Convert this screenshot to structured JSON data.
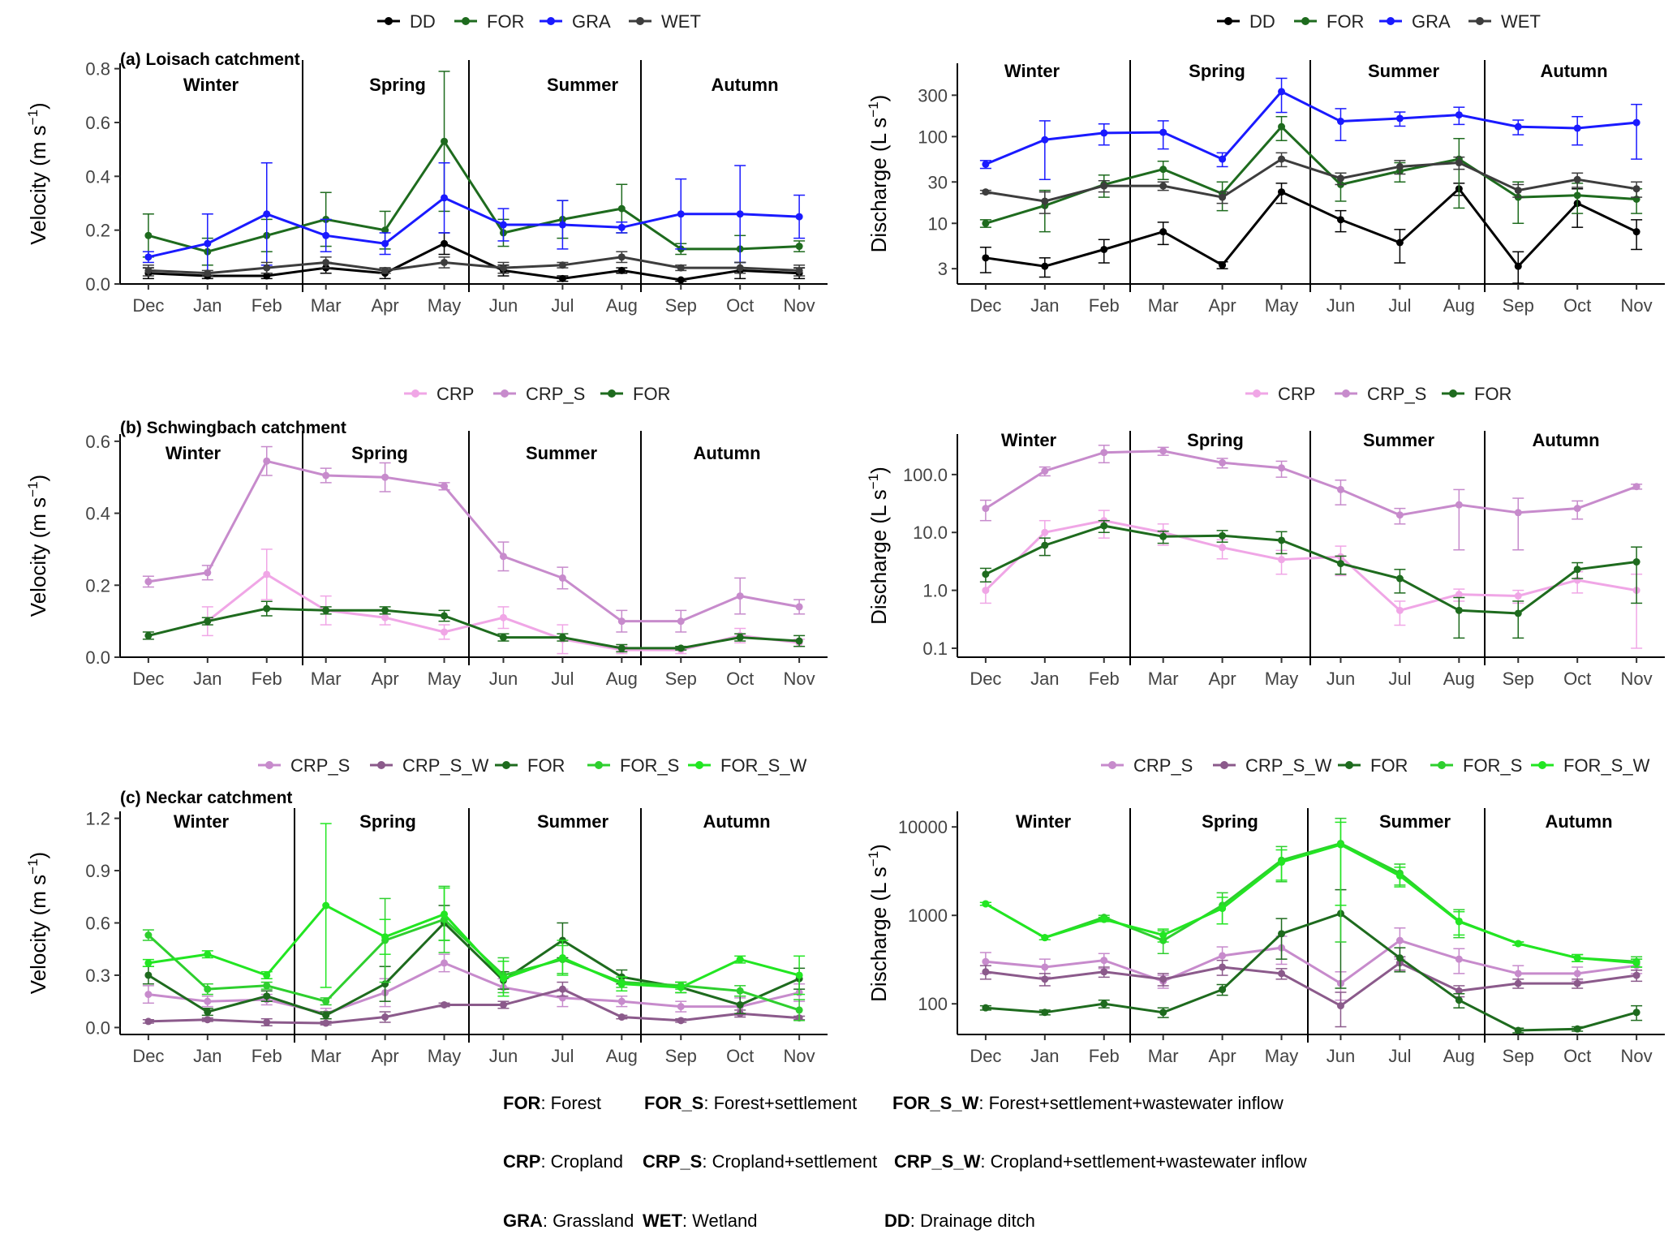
{
  "months": [
    "Dec",
    "Jan",
    "Feb",
    "Mar",
    "Apr",
    "May",
    "Jun",
    "Jul",
    "Aug",
    "Sep",
    "Oct",
    "Nov"
  ],
  "season_labels": [
    "Winter",
    "Spring",
    "Summer",
    "Autumn"
  ],
  "colors": {
    "DD": "#000000",
    "FOR": "#1e6b1e",
    "GRA": "#1a1aff",
    "WET": "#3d3d3d",
    "CRP": "#f0a6e6",
    "CRP_S": "#c78bcc",
    "CRP_S_W": "#8b5a8b",
    "FOR_S": "#2ecf2e",
    "FOR_S_W": "#22e622",
    "axis": "#000000"
  },
  "chart_data": [
    {
      "id": "loisach-velocity",
      "type": "line",
      "panel_label": "(a) Loisach catchment",
      "ylabel": "Velocity (m s-1)",
      "yscale": "linear",
      "ylim": [
        0,
        0.82
      ],
      "yticks": [
        0.0,
        0.2,
        0.4,
        0.6,
        0.8
      ],
      "ytick_labels": [
        "0.0",
        "0.2",
        "0.4",
        "0.6",
        "0.8"
      ],
      "legend": [
        "DD",
        "FOR",
        "GRA",
        "WET"
      ],
      "series": [
        {
          "name": "DD",
          "values": [
            0.04,
            0.03,
            0.03,
            0.06,
            0.04,
            0.15,
            0.05,
            0.02,
            0.05,
            0.015,
            0.05,
            0.04
          ],
          "errors": [
            0.02,
            0.01,
            0.01,
            0.02,
            0.02,
            0.04,
            0.02,
            0.01,
            0.01,
            0.005,
            0.03,
            0.02
          ]
        },
        {
          "name": "FOR",
          "values": [
            0.18,
            0.12,
            0.18,
            0.24,
            0.2,
            0.53,
            0.19,
            0.24,
            0.28,
            0.13,
            0.13,
            0.14
          ],
          "errors": [
            0.08,
            0.05,
            0.06,
            0.1,
            0.07,
            0.26,
            0.05,
            0.07,
            0.09,
            0.02,
            0.05,
            0.02
          ]
        },
        {
          "name": "GRA",
          "values": [
            0.1,
            0.15,
            0.26,
            0.18,
            0.15,
            0.32,
            0.22,
            0.22,
            0.21,
            0.26,
            0.26,
            0.25
          ],
          "errors": [
            0.02,
            0.11,
            0.19,
            0.06,
            0.04,
            0.13,
            0.06,
            0.09,
            0.02,
            0.13,
            0.18,
            0.08
          ]
        },
        {
          "name": "WET",
          "values": [
            0.05,
            0.04,
            0.06,
            0.08,
            0.05,
            0.08,
            0.06,
            0.07,
            0.1,
            0.06,
            0.06,
            0.05
          ],
          "errors": [
            0.02,
            0.01,
            0.02,
            0.02,
            0.01,
            0.02,
            0.02,
            0.01,
            0.02,
            0.01,
            0.02,
            0.02
          ]
        }
      ]
    },
    {
      "id": "loisach-discharge",
      "type": "line",
      "ylabel": "Discharge (L s-1)",
      "yscale": "log",
      "ylim": [
        2,
        700
      ],
      "yticks": [
        3,
        10,
        30,
        100,
        300
      ],
      "ytick_labels": [
        "3",
        "10",
        "30",
        "100",
        "300"
      ],
      "legend": [
        "DD",
        "FOR",
        "GRA",
        "WET"
      ],
      "series": [
        {
          "name": "DD",
          "values": [
            4,
            3.2,
            5,
            8,
            3.3,
            23,
            11,
            6,
            25,
            3.2,
            17,
            8
          ],
          "errors": [
            1.3,
            0.8,
            1.5,
            2.3,
            0.3,
            6,
            3,
            2.5,
            4,
            1.5,
            8,
            3
          ]
        },
        {
          "name": "FOR",
          "values": [
            10,
            16,
            28,
            42,
            22,
            130,
            28,
            40,
            55,
            20,
            21,
            19
          ],
          "errors": [
            1,
            8,
            8,
            10,
            8,
            40,
            10,
            10,
            40,
            10,
            8,
            6
          ]
        },
        {
          "name": "GRA",
          "values": [
            48,
            92,
            110,
            112,
            55,
            330,
            150,
            162,
            178,
            130,
            125,
            145
          ],
          "errors": [
            5,
            60,
            30,
            40,
            10,
            140,
            60,
            30,
            40,
            25,
            45,
            90
          ]
        },
        {
          "name": "WET",
          "values": [
            23,
            18,
            27,
            27,
            20,
            55,
            33,
            45,
            50,
            24,
            32,
            25
          ],
          "errors": [
            1,
            5,
            4,
            3,
            3,
            10,
            5,
            8,
            8,
            4,
            6,
            5
          ]
        }
      ]
    },
    {
      "id": "schwingbach-velocity",
      "type": "line",
      "panel_label": "(b) Schwingbach catchment",
      "ylabel": "Velocity (m s-1)",
      "yscale": "linear",
      "ylim": [
        0,
        0.62
      ],
      "yticks": [
        0.0,
        0.2,
        0.4,
        0.6
      ],
      "ytick_labels": [
        "0.0",
        "0.2",
        "0.4",
        "0.6"
      ],
      "legend": [
        "CRP",
        "CRP_S",
        "FOR"
      ],
      "series": [
        {
          "name": "CRP",
          "values": [
            null,
            0.1,
            0.23,
            0.13,
            0.11,
            0.07,
            0.11,
            0.05,
            0.02,
            0.02,
            0.06,
            0.04
          ],
          "errors": [
            0,
            0.04,
            0.07,
            0.04,
            0.02,
            0.02,
            0.03,
            0.04,
            0.01,
            0.01,
            0.02,
            0.01
          ]
        },
        {
          "name": "CRP_S",
          "values": [
            0.21,
            0.235,
            0.545,
            0.505,
            0.5,
            0.475,
            0.28,
            0.22,
            0.1,
            0.1,
            0.17,
            0.14
          ],
          "errors": [
            0.015,
            0.02,
            0.04,
            0.02,
            0.04,
            0.01,
            0.04,
            0.03,
            0.03,
            0.03,
            0.05,
            0.02
          ]
        },
        {
          "name": "FOR",
          "values": [
            0.06,
            0.1,
            0.135,
            0.13,
            0.13,
            0.115,
            0.055,
            0.055,
            0.025,
            0.025,
            0.055,
            0.045
          ],
          "errors": [
            0.01,
            0.01,
            0.02,
            0.01,
            0.01,
            0.015,
            0.01,
            0.01,
            0.01,
            0.005,
            0.01,
            0.015
          ]
        }
      ]
    },
    {
      "id": "schwingbach-discharge",
      "type": "line",
      "ylabel": "Discharge (L s-1)",
      "yscale": "log",
      "ylim": [
        0.07,
        500
      ],
      "yticks": [
        0.1,
        1,
        10,
        100
      ],
      "ytick_labels": [
        "0.1",
        "1.0",
        "10.0",
        "100.0"
      ],
      "legend": [
        "CRP",
        "CRP_S",
        "FOR"
      ],
      "series": [
        {
          "name": "CRP",
          "values": [
            1.0,
            10,
            16,
            10,
            5.5,
            3.4,
            3.8,
            0.45,
            0.85,
            0.8,
            1.5,
            1.0
          ],
          "errors": [
            0.4,
            6,
            8,
            4,
            2,
            1.5,
            2,
            0.2,
            0.2,
            0.2,
            0.6,
            0.9
          ]
        },
        {
          "name": "CRP_S",
          "values": [
            26,
            115,
            240,
            255,
            160,
            130,
            55,
            20,
            30,
            22,
            26,
            62
          ],
          "errors": [
            10,
            20,
            80,
            40,
            30,
            40,
            25,
            6,
            25,
            17,
            9,
            6
          ]
        },
        {
          "name": "FOR",
          "values": [
            1.9,
            6,
            13,
            8.5,
            8.8,
            7.3,
            2.9,
            1.6,
            0.45,
            0.4,
            2.3,
            3.1
          ],
          "errors": [
            0.5,
            2,
            3,
            2,
            2,
            3,
            1,
            0.7,
            0.3,
            0.25,
            0.7,
            2.5
          ]
        }
      ]
    },
    {
      "id": "neckar-velocity",
      "type": "line",
      "panel_label": "(c) Neckar catchment",
      "ylabel": "Velocity (m s-1)",
      "yscale": "linear",
      "ylim": [
        -0.04,
        1.24
      ],
      "yticks": [
        0.0,
        0.3,
        0.6,
        0.9,
        1.2
      ],
      "ytick_labels": [
        "0.0",
        "0.3",
        "0.6",
        "0.9",
        "1.2"
      ],
      "legend": [
        "CRP_S",
        "CRP_S_W",
        "FOR",
        "FOR_S",
        "FOR_S_W"
      ],
      "series": [
        {
          "name": "CRP_S",
          "values": [
            0.19,
            0.15,
            0.16,
            0.08,
            0.2,
            0.37,
            0.23,
            0.17,
            0.15,
            0.12,
            0.12,
            0.2
          ],
          "errors": [
            0.05,
            0.03,
            0.03,
            0.03,
            0.08,
            0.05,
            0.05,
            0.05,
            0.03,
            0.03,
            0.05,
            0.05
          ]
        },
        {
          "name": "CRP_S_W",
          "values": [
            0.035,
            0.045,
            0.03,
            0.025,
            0.06,
            0.13,
            0.13,
            0.22,
            0.06,
            0.04,
            0.08,
            0.055
          ],
          "errors": [
            0.01,
            0.01,
            0.02,
            0.01,
            0.03,
            0.01,
            0.02,
            0.04,
            0.01,
            0.01,
            0.02,
            0.01
          ]
        },
        {
          "name": "FOR",
          "values": [
            0.3,
            0.09,
            0.18,
            0.07,
            0.25,
            0.6,
            0.27,
            0.5,
            0.29,
            0.23,
            0.13,
            0.28
          ],
          "errors": [
            0.05,
            0.02,
            0.03,
            0.02,
            0.1,
            0.1,
            0.05,
            0.1,
            0.04,
            0.03,
            0.05,
            0.06
          ]
        },
        {
          "name": "FOR_S",
          "values": [
            0.53,
            0.22,
            0.24,
            0.15,
            0.5,
            0.62,
            0.3,
            0.39,
            0.26,
            0.24,
            0.21,
            0.1
          ],
          "errors": [
            0.03,
            0.03,
            0.02,
            0.02,
            0.24,
            0.19,
            0.1,
            0.08,
            0.03,
            0.02,
            0.03,
            0.06
          ]
        },
        {
          "name": "FOR_S_W",
          "values": [
            0.37,
            0.42,
            0.3,
            0.7,
            0.52,
            0.65,
            0.28,
            0.4,
            0.25,
            0.23,
            0.39,
            0.3
          ],
          "errors": [
            0.02,
            0.02,
            0.02,
            0.47,
            0.1,
            0.15,
            0.1,
            0.1,
            0.04,
            0.03,
            0.02,
            0.11
          ]
        }
      ]
    },
    {
      "id": "neckar-discharge",
      "type": "line",
      "ylabel": "Discharge (L s-1)",
      "yscale": "log",
      "ylim": [
        45,
        15000
      ],
      "yticks": [
        100,
        1000,
        10000
      ],
      "ytick_labels": [
        "100",
        "1000",
        "10000"
      ],
      "legend": [
        "CRP_S",
        "CRP_S_W",
        "FOR",
        "FOR_S",
        "FOR_S_W"
      ],
      "series": [
        {
          "name": "CRP_S",
          "values": [
            300,
            260,
            310,
            180,
            350,
            430,
            170,
            520,
            320,
            220,
            220,
            270
          ],
          "errors": [
            80,
            60,
            60,
            30,
            90,
            150,
            60,
            200,
            100,
            50,
            40,
            50
          ]
        },
        {
          "name": "CRP_S_W",
          "values": [
            230,
            190,
            230,
            190,
            260,
            220,
            95,
            290,
            140,
            170,
            170,
            210
          ],
          "errors": [
            40,
            30,
            30,
            30,
            50,
            30,
            40,
            50,
            20,
            20,
            20,
            30
          ]
        },
        {
          "name": "FOR",
          "values": [
            90,
            80,
            100,
            80,
            145,
            620,
            1050,
            330,
            110,
            50,
            52,
            80
          ],
          "errors": [
            5,
            5,
            10,
            10,
            20,
            300,
            900,
            100,
            20,
            3,
            3,
            15
          ]
        },
        {
          "name": "FOR_S",
          "values": [
            1350,
            560,
            950,
            520,
            1300,
            4200,
            6500,
            3000,
            860,
            480,
            330,
            300
          ],
          "errors": [
            50,
            30,
            50,
            150,
            500,
            1800,
            6000,
            800,
            300,
            20,
            30,
            40
          ]
        },
        {
          "name": "FOR_S_W",
          "values": [
            1350,
            560,
            900,
            600,
            1200,
            4000,
            6300,
            2800,
            850,
            480,
            330,
            290
          ],
          "errors": [
            50,
            30,
            50,
            100,
            400,
            1500,
            5000,
            700,
            250,
            20,
            30,
            30
          ]
        }
      ]
    }
  ],
  "footer": {
    "for_key": "FOR",
    "for_desc": ": Forest",
    "for_s_key": "FOR_S",
    "for_s_desc": ": Forest+settlement",
    "for_s_w_key": "FOR_S_W",
    "for_s_w_desc": ": Forest+settlement+wastewater inflow",
    "crp_key": "CRP",
    "crp_desc": ": Cropland",
    "crp_s_key": "CRP_S",
    "crp_s_desc": ": Cropland+settlement",
    "crp_s_w_key": "CRP_S_W",
    "crp_s_w_desc": ": Cropland+settlement+wastewater inflow",
    "gra_key": "GRA",
    "gra_desc": ": Grassland",
    "wet_key": "WET",
    "wet_desc": ": Wetland",
    "dd_key": "DD",
    "dd_desc": ": Drainage ditch"
  }
}
